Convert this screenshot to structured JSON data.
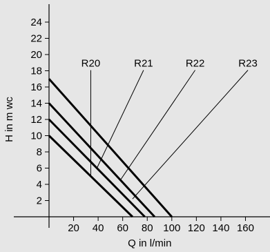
{
  "chart_data": {
    "type": "line",
    "xlabel": "Q in l/min",
    "ylabel": "H in m wc",
    "xlim": [
      0,
      170
    ],
    "ylim": [
      0,
      24
    ],
    "x_ticks": [
      20,
      40,
      60,
      80,
      100,
      120,
      140,
      160
    ],
    "y_ticks": [
      2,
      4,
      6,
      8,
      10,
      12,
      14,
      16,
      18,
      20,
      22,
      24
    ],
    "grid": false,
    "series": [
      {
        "name": "R20",
        "points": [
          [
            0,
            10
          ],
          [
            68,
            0
          ]
        ],
        "label_anchor": [
          34,
          5
        ]
      },
      {
        "name": "R21",
        "points": [
          [
            0,
            12
          ],
          [
            78,
            0
          ]
        ],
        "label_anchor": [
          39,
          6
        ]
      },
      {
        "name": "R22",
        "points": [
          [
            0,
            14
          ],
          [
            86,
            0
          ]
        ],
        "label_anchor": [
          58,
          4.5
        ]
      },
      {
        "name": "R23",
        "points": [
          [
            0,
            17
          ],
          [
            100,
            0
          ]
        ],
        "label_anchor": [
          68,
          2.2
        ]
      }
    ],
    "series_labels": [
      {
        "series": "R20",
        "text": "R20",
        "x": 34,
        "y": 18.5
      },
      {
        "series": "R21",
        "text": "R21",
        "x": 77,
        "y": 18.5
      },
      {
        "series": "R22",
        "text": "R22",
        "x": 119,
        "y": 18.5
      },
      {
        "series": "R23",
        "text": "R23",
        "x": 162,
        "y": 18.5
      }
    ]
  }
}
